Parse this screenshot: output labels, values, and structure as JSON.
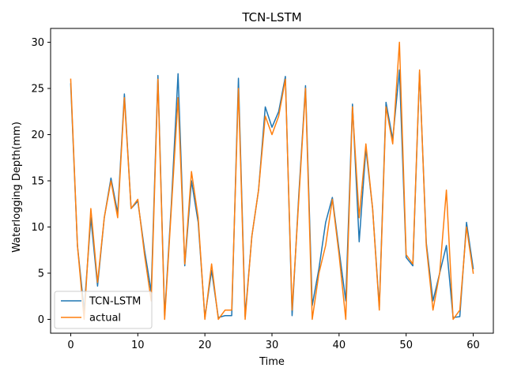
{
  "chart_data": {
    "type": "line",
    "title": "TCN-LSTM",
    "xlabel": "Time",
    "ylabel": "Waterlogging Depth(mm)",
    "xlim": [
      -3,
      63
    ],
    "ylim": [
      -1.5,
      31.5
    ],
    "xticks": [
      0,
      10,
      20,
      30,
      40,
      50,
      60
    ],
    "yticks": [
      0,
      5,
      10,
      15,
      20,
      25,
      30
    ],
    "grid": false,
    "legend_position": "lower-left",
    "x": [
      0,
      1,
      2,
      3,
      4,
      5,
      6,
      7,
      8,
      9,
      10,
      11,
      12,
      13,
      14,
      15,
      16,
      17,
      18,
      19,
      20,
      21,
      22,
      23,
      24,
      25,
      26,
      27,
      28,
      29,
      30,
      31,
      32,
      33,
      34,
      35,
      36,
      37,
      38,
      39,
      40,
      41,
      42,
      43,
      44,
      45,
      46,
      47,
      48,
      49,
      50,
      51,
      52,
      53,
      54,
      55,
      56,
      57,
      58,
      59,
      60
    ],
    "series": [
      {
        "name": "TCN-LSTM",
        "color": "#1f77b4",
        "values": [
          25.5,
          8.0,
          1.0,
          11.0,
          3.6,
          11.0,
          15.3,
          11.5,
          24.4,
          12.0,
          12.8,
          7.5,
          3.0,
          26.4,
          0.3,
          12.5,
          26.6,
          5.8,
          15.0,
          10.5,
          0.2,
          5.3,
          0.2,
          0.4,
          0.4,
          26.1,
          0.3,
          9.0,
          14.0,
          23.0,
          20.8,
          22.5,
          26.3,
          0.4,
          13.5,
          25.3,
          1.5,
          5.5,
          10.5,
          13.2,
          7.5,
          2.0,
          23.3,
          8.4,
          18.5,
          12.0,
          1.3,
          23.5,
          19.5,
          27.0,
          6.7,
          5.8,
          26.8,
          8.3,
          2.0,
          5.0,
          8.0,
          0.2,
          0.3,
          10.5,
          5.5
        ]
      },
      {
        "name": "actual",
        "color": "#ff7f0e",
        "values": [
          26.0,
          8.0,
          0.0,
          12.0,
          4.0,
          11.0,
          15.0,
          11.0,
          24.0,
          12.0,
          13.0,
          7.0,
          2.0,
          26.0,
          0.0,
          12.0,
          24.0,
          6.0,
          16.0,
          11.0,
          0.0,
          6.0,
          0.0,
          1.0,
          1.0,
          25.0,
          0.0,
          9.0,
          14.0,
          22.0,
          20.0,
          22.0,
          26.0,
          1.0,
          13.0,
          25.0,
          0.0,
          5.0,
          8.0,
          13.0,
          7.0,
          0.0,
          23.0,
          11.0,
          19.0,
          12.0,
          1.0,
          23.0,
          19.0,
          30.0,
          7.0,
          6.0,
          27.0,
          8.0,
          1.0,
          5.0,
          14.0,
          0.0,
          1.0,
          10.0,
          5.0
        ]
      }
    ]
  }
}
